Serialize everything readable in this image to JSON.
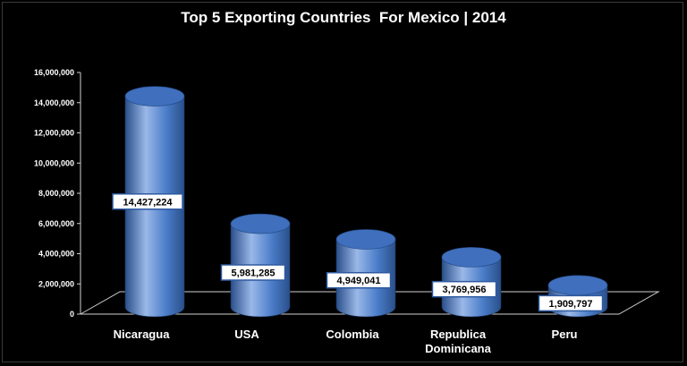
{
  "chart_data": {
    "type": "bar",
    "title": "Top 5 Exporting Countries  For Mexico | 2014",
    "categories": [
      [
        "Nicaragua"
      ],
      [
        "USA"
      ],
      [
        "Colombia"
      ],
      [
        "Republica",
        "Dominicana"
      ],
      [
        "Peru"
      ]
    ],
    "values": [
      14427224,
      5981285,
      4949041,
      3769956,
      1909797
    ],
    "data_labels": [
      "14,427,224",
      "5,981,285",
      "4,949,041",
      "3,769,956",
      "1,909,797"
    ],
    "y_ticks": [
      "0",
      "2,000,000",
      "4,000,000",
      "6,000,000",
      "8,000,000",
      "10,000,000",
      "12,000,000",
      "14,000,000",
      "16,000,000"
    ],
    "ylim": [
      0,
      16000000
    ],
    "grid": false,
    "legend": "none",
    "bar_style": "3d-cylinder",
    "colors": {
      "background": "#000000",
      "bar_light": "#9ab8e8",
      "bar_mid": "#4a7cc8",
      "bar_dark": "#2a4f8a",
      "bar_top": "#3f6fbd",
      "floor_line": "#cfcfcf",
      "text": "#ffffff",
      "label_box_fill": "#ffffff",
      "label_box_border": "#2e5aa0"
    }
  }
}
